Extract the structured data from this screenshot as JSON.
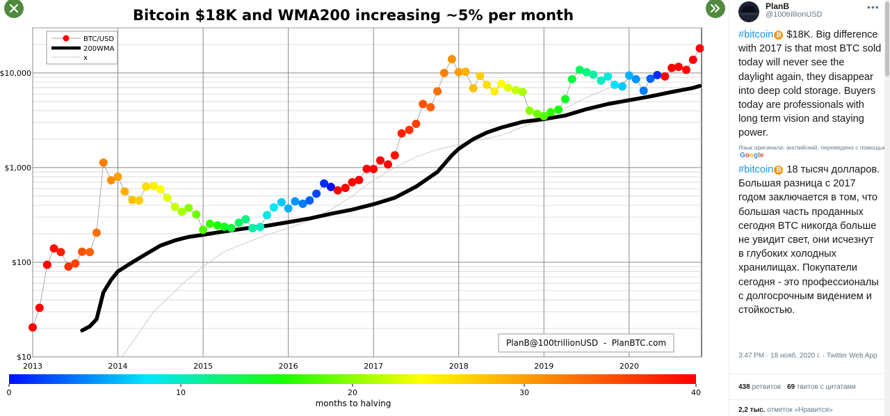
{
  "chart_data": {
    "type": "scatter",
    "title": "Bitcoin $18K and WMA200 increasing ~5% per month",
    "y_scale": "log",
    "ylim": [
      10,
      30000
    ],
    "xlim": [
      2013.0,
      2020.85
    ],
    "x_ticks": [
      2013,
      2014,
      2015,
      2016,
      2017,
      2018,
      2019,
      2020
    ],
    "x_tick_labels": [
      "2013",
      "2014",
      "2015",
      "2016",
      "2017",
      "2018",
      "2019",
      "2020"
    ],
    "y_ticks": [
      10,
      100,
      1000,
      10000
    ],
    "y_tick_labels": [
      "$10",
      "$100",
      "$1,000",
      "$10,000"
    ],
    "grid": true,
    "legend_position": "top-left",
    "legend": [
      "BTC/USD",
      "200WMA",
      "x"
    ],
    "annotation": "PlanB@100trillionUSD  -  PlanBTC.com",
    "colorbar": {
      "label": "months to halving",
      "min": 0,
      "max": 40,
      "ticks": [
        0,
        10,
        20,
        30,
        40
      ],
      "tick_labels": [
        "0",
        "10",
        "20",
        "30",
        "40"
      ],
      "colors": [
        "#0010ff",
        "#00e5ff",
        "#17ff00",
        "#ffff00",
        "#ff7f00",
        "#ff0000"
      ]
    },
    "series": [
      {
        "name": "BTC/USD",
        "marker": "point",
        "x": [
          2013.0,
          2013.08,
          2013.17,
          2013.25,
          2013.33,
          2013.42,
          2013.5,
          2013.58,
          2013.67,
          2013.75,
          2013.83,
          2013.92,
          2014.0,
          2014.08,
          2014.17,
          2014.25,
          2014.33,
          2014.42,
          2014.5,
          2014.58,
          2014.67,
          2014.75,
          2014.83,
          2014.92,
          2015.0,
          2015.08,
          2015.17,
          2015.25,
          2015.33,
          2015.42,
          2015.5,
          2015.58,
          2015.67,
          2015.75,
          2015.83,
          2015.92,
          2016.0,
          2016.08,
          2016.17,
          2016.25,
          2016.33,
          2016.42,
          2016.5,
          2016.58,
          2016.67,
          2016.75,
          2016.83,
          2016.92,
          2017.0,
          2017.08,
          2017.17,
          2017.25,
          2017.33,
          2017.42,
          2017.5,
          2017.58,
          2017.67,
          2017.75,
          2017.83,
          2017.92,
          2018.0,
          2018.08,
          2018.17,
          2018.25,
          2018.33,
          2018.42,
          2018.5,
          2018.58,
          2018.67,
          2018.75,
          2018.83,
          2018.92,
          2019.0,
          2019.08,
          2019.17,
          2019.25,
          2019.33,
          2019.42,
          2019.5,
          2019.58,
          2019.67,
          2019.75,
          2019.83,
          2019.92,
          2020.0,
          2020.08,
          2020.17,
          2020.25,
          2020.33,
          2020.42,
          2020.5,
          2020.58,
          2020.67,
          2020.75,
          2020.83
        ],
        "y": [
          20.5,
          33,
          94,
          140,
          128,
          90,
          97,
          129,
          128,
          205,
          1130,
          735,
          800,
          560,
          455,
          450,
          630,
          640,
          590,
          480,
          385,
          340,
          375,
          320,
          220,
          255,
          245,
          237,
          230,
          262,
          285,
          229,
          236,
          315,
          380,
          430,
          370,
          440,
          415,
          450,
          530,
          680,
          625,
          575,
          610,
          700,
          740,
          970,
          965,
          1190,
          1080,
          1350,
          2300,
          2500,
          2900,
          4700,
          4350,
          6400,
          10000,
          14000,
          10200,
          10300,
          6900,
          9300,
          7500,
          6400,
          7700,
          7000,
          6600,
          6300,
          4000,
          3700,
          3500,
          3850,
          4100,
          5300,
          8600,
          10800,
          10200,
          9600,
          8300,
          9200,
          7500,
          7200,
          9400,
          8600,
          6500,
          8700,
          9500,
          9200,
          11300,
          11600,
          10800,
          13800,
          18200
        ],
        "months_to_halving": [
          40,
          40,
          40,
          39,
          38,
          37,
          36,
          35,
          34,
          33,
          32,
          31,
          30,
          29,
          28,
          27,
          26,
          25,
          24,
          23,
          22,
          21,
          20,
          19,
          18,
          17,
          16,
          15,
          14,
          13,
          12,
          11,
          10,
          9,
          8,
          7,
          6,
          5,
          4,
          3,
          2,
          1,
          0,
          47,
          46,
          45,
          44,
          43,
          42,
          41,
          40,
          39,
          38,
          37,
          36,
          35,
          34,
          33,
          32,
          31,
          30,
          29,
          28,
          27,
          26,
          25,
          24,
          23,
          22,
          21,
          20,
          19,
          18,
          17,
          16,
          15,
          14,
          13,
          12,
          11,
          10,
          9,
          8,
          7,
          6,
          5,
          4,
          3,
          1,
          49,
          48,
          47,
          46,
          45,
          44
        ]
      },
      {
        "name": "200WMA",
        "marker": "line",
        "x": [
          2013.58,
          2013.67,
          2013.75,
          2013.83,
          2013.92,
          2014.0,
          2014.17,
          2014.33,
          2014.5,
          2014.67,
          2014.83,
          2015.0,
          2015.25,
          2015.5,
          2015.75,
          2016.0,
          2016.25,
          2016.5,
          2016.75,
          2017.0,
          2017.25,
          2017.5,
          2017.75,
          2017.92,
          2018.0,
          2018.17,
          2018.33,
          2018.5,
          2018.75,
          2019.0,
          2019.25,
          2019.5,
          2019.75,
          2020.0,
          2020.25,
          2020.5,
          2020.75,
          2020.83
        ],
        "y": [
          19,
          21,
          25,
          48,
          65,
          80,
          100,
          122,
          150,
          170,
          185,
          195,
          212,
          228,
          243,
          265,
          290,
          325,
          360,
          410,
          480,
          630,
          900,
          1350,
          1580,
          2000,
          2350,
          2650,
          3050,
          3250,
          3550,
          4150,
          4700,
          5150,
          5650,
          6300,
          6950,
          7300
        ]
      },
      {
        "name": "x",
        "marker": "thin-line",
        "x": [
          2014.05,
          2014.42,
          2014.75,
          2015.0,
          2015.25,
          2015.5,
          2015.75,
          2016.0,
          2016.25,
          2016.5,
          2016.75,
          2017.0,
          2017.25,
          2017.5,
          2017.75,
          2018.0,
          2018.5,
          2019.0,
          2019.5,
          2020.0,
          2020.25,
          2020.5
        ],
        "y": [
          10,
          30,
          58,
          90,
          130,
          160,
          195,
          230,
          275,
          360,
          500,
          740,
          1000,
          1300,
          1550,
          1750,
          2200,
          3300,
          5500,
          8500,
          9000,
          9500
        ]
      }
    ]
  },
  "tweet": {
    "author_name": "PlanB",
    "author_handle": "@100trillionUSD",
    "hashtag": "#bitcoin",
    "text_original": " $18K. Big difference with 2017 is that most BTC sold today will never see the daylight again, they disappear into deep cold storage. Buyers today are professionals with long term vision and staying power.",
    "translation_note": "Язык оригинала: английский, переведено с помощью",
    "translation_provider": "Google",
    "text_translated": " 18 тысяч долларов. Большая разница с 2017 годом заключается в том, что большая часть проданных сегодня BTC никогда больше не увидит свет, они исчезнут в глубоких холодных хранилищах. Покупатели сегодня - это профессионалы с долгосрочным видением и стойкостью.",
    "timestamp": "3:47 PM · 18 нояб. 2020 г. · Twitter Web App",
    "retweets_count": "438",
    "retweets_label": "ретвитов",
    "quotes_count": "69",
    "quotes_label": "твитов с цитатами",
    "likes_count": "2,2 тыс.",
    "likes_label": "отметок «Нравится»"
  },
  "icons": {
    "collapse": "close-icon",
    "expand": "double-chevron-right-icon",
    "more": "more-icon",
    "btc": "bitcoin-icon"
  }
}
